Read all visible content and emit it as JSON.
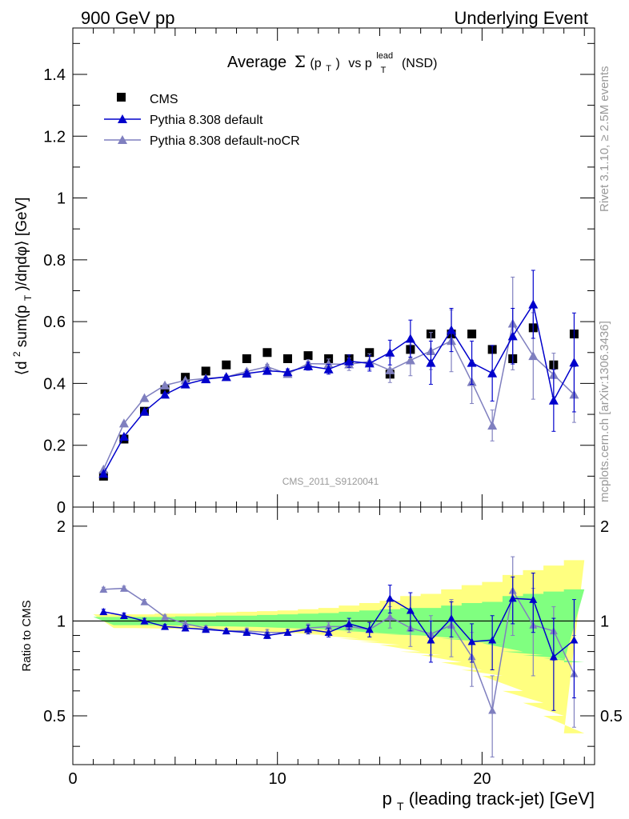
{
  "header": {
    "left": "900 GeV pp",
    "right": "Underlying Event"
  },
  "side_labels": {
    "rivet": "Rivet 3.1.10, ≥ 2.5M events",
    "mcplots": "mcplots.cern.ch [arXiv:1306.3436]"
  },
  "watermark": "CMS_2011_S9120041",
  "colors": {
    "cms": "#000000",
    "pythia_default": "#0000cc",
    "pythia_nocr": "#7f7fbf",
    "band_inner": "#80ff80",
    "band_outer": "#ffff80"
  },
  "chart_data": [
    {
      "type": "scatter",
      "panel": "main",
      "title_parts": {
        "pre": "Average",
        "sigma": "Σ",
        "arg": "(p",
        "argsub": "T",
        "close": ")",
        "vs": "vs p",
        "sup": "lead",
        "sub": "T",
        "post": "(NSD)"
      },
      "ylabel_parts": {
        "a": "⟨d",
        "b": "2",
        "c": " sum(p",
        "d": "T",
        "e": ")/dηdφ⟩ [GeV]"
      },
      "xlim": [
        0,
        25.5
      ],
      "ylim": [
        0,
        1.55
      ],
      "y_ticks": [
        "0",
        "0.2",
        "0.4",
        "0.6",
        "0.8",
        "1",
        "1.2",
        "1.4"
      ],
      "legend_position": "top-left",
      "x": [
        1.5,
        2.5,
        3.5,
        4.5,
        5.5,
        6.5,
        7.5,
        8.5,
        9.5,
        10.5,
        11.5,
        12.5,
        13.5,
        14.5,
        15.5,
        16.5,
        17.5,
        18.5,
        19.5,
        20.5,
        21.5,
        22.5,
        23.5,
        24.5
      ],
      "series": [
        {
          "name": "CMS",
          "marker": "square",
          "values": [
            0.1,
            0.22,
            0.31,
            0.38,
            0.42,
            0.44,
            0.46,
            0.48,
            0.5,
            0.48,
            0.49,
            0.48,
            0.48,
            0.5,
            0.43,
            0.51,
            0.56,
            0.56,
            0.56,
            0.51,
            0.48,
            0.58,
            0.46,
            0.56
          ]
        },
        {
          "name": "Pythia 8.308 default",
          "marker": "triangle",
          "values": [
            0.108,
            0.228,
            0.309,
            0.364,
            0.397,
            0.414,
            0.421,
            0.432,
            0.441,
            0.437,
            0.456,
            0.446,
            0.472,
            0.465,
            0.5,
            0.545,
            0.467,
            0.573,
            0.467,
            0.433,
            0.553,
            0.656,
            0.345,
            0.468
          ],
          "errors": [
            0.004,
            0.004,
            0.004,
            0.004,
            0.004,
            0.005,
            0.006,
            0.007,
            0.008,
            0.01,
            0.013,
            0.016,
            0.02,
            0.025,
            0.04,
            0.06,
            0.07,
            0.07,
            0.07,
            0.09,
            0.09,
            0.11,
            0.1,
            0.16
          ]
        },
        {
          "name": "Pythia 8.308 default-noCR",
          "marker": "triangle",
          "values": [
            0.122,
            0.271,
            0.353,
            0.394,
            0.41,
            0.416,
            0.421,
            0.439,
            0.454,
            0.431,
            0.464,
            0.463,
            0.462,
            0.471,
            0.443,
            0.475,
            0.505,
            0.538,
            0.405,
            0.264,
            0.594,
            0.489,
            0.428,
            0.364
          ],
          "errors": [
            0.004,
            0.004,
            0.004,
            0.004,
            0.004,
            0.005,
            0.006,
            0.007,
            0.008,
            0.01,
            0.013,
            0.016,
            0.02,
            0.025,
            0.04,
            0.05,
            0.06,
            0.1,
            0.07,
            0.05,
            0.15,
            0.14,
            0.07,
            0.09
          ]
        }
      ]
    },
    {
      "type": "line",
      "panel": "ratio",
      "ylabel": "Ratio to CMS",
      "xlabel_parts": {
        "p": "p",
        "sub": "T",
        "rest": " (leading track-jet) [GeV]"
      },
      "xlim": [
        0,
        25.5
      ],
      "ylim": [
        0.35,
        2.3
      ],
      "log_y": true,
      "x_ticks": [
        "0",
        "10",
        "20"
      ],
      "y_ticks": [
        "0.5",
        "1",
        "2"
      ],
      "x": [
        1.5,
        2.5,
        3.5,
        4.5,
        5.5,
        6.5,
        7.5,
        8.5,
        9.5,
        10.5,
        11.5,
        12.5,
        13.5,
        14.5,
        15.5,
        16.5,
        17.5,
        18.5,
        19.5,
        20.5,
        21.5,
        22.5,
        23.5,
        24.5
      ],
      "band_inner": [
        0.03,
        0.03,
        0.03,
        0.03,
        0.035,
        0.035,
        0.04,
        0.04,
        0.045,
        0.05,
        0.055,
        0.06,
        0.07,
        0.08,
        0.09,
        0.1,
        0.1,
        0.12,
        0.14,
        0.15,
        0.2,
        0.22,
        0.24,
        0.26
      ],
      "band_outer": [
        0.05,
        0.05,
        0.05,
        0.055,
        0.055,
        0.06,
        0.065,
        0.07,
        0.075,
        0.08,
        0.09,
        0.1,
        0.12,
        0.14,
        0.16,
        0.2,
        0.22,
        0.26,
        0.3,
        0.33,
        0.4,
        0.45,
        0.5,
        0.56
      ],
      "series": [
        {
          "name": "Pythia 8.308 default",
          "values": [
            1.07,
            1.04,
            1.0,
            0.96,
            0.95,
            0.94,
            0.93,
            0.92,
            0.9,
            0.92,
            0.94,
            0.92,
            0.98,
            0.94,
            1.18,
            1.08,
            0.87,
            1.02,
            0.86,
            0.87,
            1.18,
            1.17,
            0.77,
            0.87
          ],
          "errors": [
            0.02,
            0.02,
            0.02,
            0.015,
            0.015,
            0.015,
            0.015,
            0.02,
            0.02,
            0.02,
            0.03,
            0.03,
            0.04,
            0.05,
            0.12,
            0.15,
            0.13,
            0.13,
            0.12,
            0.17,
            0.2,
            0.25,
            0.25,
            0.3
          ]
        },
        {
          "name": "Pythia 8.308 default-noCR",
          "values": [
            1.26,
            1.27,
            1.15,
            1.03,
            0.98,
            0.95,
            0.93,
            0.93,
            0.92,
            0.92,
            0.95,
            0.96,
            0.96,
            0.94,
            1.03,
            0.95,
            0.91,
            0.97,
            0.77,
            0.52,
            1.25,
            0.97,
            0.93,
            0.68
          ],
          "errors": [
            0.02,
            0.02,
            0.02,
            0.015,
            0.015,
            0.015,
            0.015,
            0.02,
            0.02,
            0.02,
            0.03,
            0.03,
            0.04,
            0.05,
            0.08,
            0.12,
            0.13,
            0.2,
            0.15,
            0.15,
            0.35,
            0.3,
            0.18,
            0.22
          ]
        }
      ]
    }
  ]
}
